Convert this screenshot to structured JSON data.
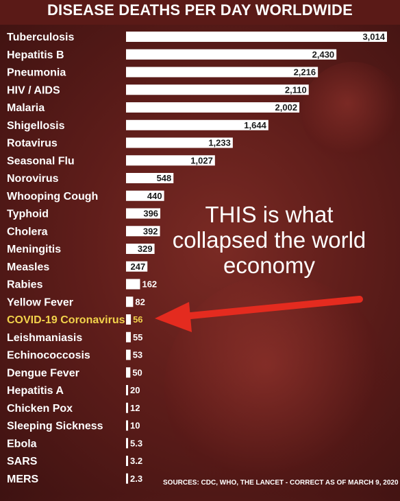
{
  "title": "DISEASE DEATHS PER DAY WORLDWIDE",
  "annotation": "THIS is what collapsed the world economy",
  "sources": "SOURCES: CDC, WHO, THE LANCET - CORRECT AS OF MARCH 9, 2020",
  "colors": {
    "background": "#5e1d1a",
    "bar": "#ffffff",
    "highlight_text": "#f2d24b",
    "arrow": "#e42b1f"
  },
  "chart_data": {
    "type": "bar",
    "orientation": "horizontal",
    "title": "DISEASE DEATHS PER DAY WORLDWIDE",
    "highlight": "COVID-19 Coronavirus",
    "categories": [
      "Tuberculosis",
      "Hepatitis B",
      "Pneumonia",
      "HIV / AIDS",
      "Malaria",
      "Shigellosis",
      "Rotavirus",
      "Seasonal Flu",
      "Norovirus",
      "Whooping Cough",
      "Typhoid",
      "Cholera",
      "Meningitis",
      "Measles",
      "Rabies",
      "Yellow Fever",
      "COVID-19 Coronavirus",
      "Leishmaniasis",
      "Echinococcosis",
      "Dengue Fever",
      "Hepatitis A",
      "Chicken Pox",
      "Sleeping Sickness",
      "Ebola",
      "SARS",
      "MERS"
    ],
    "values": [
      3014,
      2430,
      2216,
      2110,
      2002,
      1644,
      1233,
      1027,
      548,
      440,
      396,
      392,
      329,
      247,
      162,
      82,
      56,
      55,
      53,
      50,
      20,
      12,
      10,
      5.3,
      3.2,
      2.3
    ],
    "value_labels": [
      "3,014",
      "2,430",
      "2,216",
      "2,110",
      "2,002",
      "1,644",
      "1,233",
      "1,027",
      "548",
      "440",
      "396",
      "392",
      "329",
      "247",
      "162",
      "82",
      "56",
      "55",
      "53",
      "50",
      "20",
      "12",
      "10",
      "5.3",
      "3.2",
      "2.3"
    ]
  }
}
